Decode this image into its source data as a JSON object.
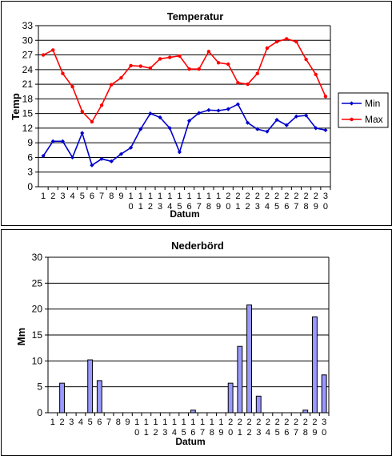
{
  "chart_data": [
    {
      "type": "line",
      "title": "Temperatur",
      "xlabel": "Datum",
      "ylabel": "Temp",
      "ylim": [
        0,
        33
      ],
      "yticks": [
        0,
        3,
        6,
        9,
        12,
        15,
        18,
        21,
        24,
        27,
        30,
        33
      ],
      "grid": true,
      "legend_position": "right",
      "categories": [
        "1",
        "2",
        "3",
        "4",
        "5",
        "6",
        "7",
        "8",
        "9",
        "10",
        "11",
        "12",
        "13",
        "14",
        "15",
        "16",
        "17",
        "18",
        "19",
        "20",
        "21",
        "22",
        "23",
        "24",
        "25",
        "26",
        "27",
        "28",
        "29",
        "30"
      ],
      "series": [
        {
          "name": "Min",
          "color": "#0000cc",
          "marker": "diamond",
          "values": [
            6.3,
            9.3,
            9.3,
            6.0,
            11.0,
            4.4,
            5.7,
            5.2,
            6.7,
            8.0,
            11.8,
            15.0,
            14.2,
            12.0,
            7.1,
            13.5,
            15.1,
            15.7,
            15.6,
            15.9,
            16.9,
            13.1,
            11.8,
            11.3,
            13.7,
            12.6,
            14.4,
            14.6,
            12.0,
            11.6
          ]
        },
        {
          "name": "Max",
          "color": "#ff0000",
          "marker": "circle",
          "values": [
            27.0,
            28.0,
            23.2,
            20.5,
            15.4,
            13.3,
            16.7,
            20.9,
            22.3,
            24.8,
            24.7,
            24.3,
            26.2,
            26.5,
            26.8,
            24.1,
            24.1,
            27.7,
            25.4,
            25.1,
            21.3,
            21.0,
            23.2,
            28.4,
            29.7,
            30.3,
            29.7,
            26.1,
            23.0,
            18.5
          ]
        }
      ]
    },
    {
      "type": "bar",
      "title": "Nederbörd",
      "xlabel": "Datum",
      "ylabel": "Mm",
      "ylim": [
        0,
        30
      ],
      "yticks": [
        0,
        5,
        10,
        15,
        20,
        25,
        30
      ],
      "grid": true,
      "bar_color": "#9999ff",
      "categories": [
        "1",
        "2",
        "3",
        "4",
        "5",
        "6",
        "7",
        "8",
        "9",
        "10",
        "11",
        "12",
        "13",
        "14",
        "15",
        "16",
        "17",
        "18",
        "19",
        "20",
        "21",
        "22",
        "23",
        "24",
        "25",
        "26",
        "27",
        "28",
        "29",
        "30"
      ],
      "values": [
        0,
        5.7,
        0,
        0,
        10.2,
        6.2,
        0,
        0,
        0,
        0,
        0,
        0,
        0,
        0,
        0,
        0.5,
        0,
        0,
        0,
        5.7,
        12.8,
        20.8,
        3.2,
        0,
        0,
        0,
        0,
        0.5,
        18.5,
        7.3
      ]
    }
  ]
}
